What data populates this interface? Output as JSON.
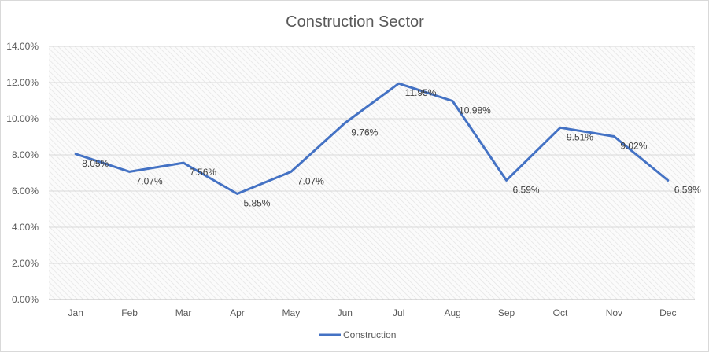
{
  "chart_data": {
    "type": "line",
    "title": "Construction Sector",
    "categories": [
      "Jan",
      "Feb",
      "Mar",
      "Apr",
      "May",
      "Jun",
      "Jul",
      "Aug",
      "Sep",
      "Oct",
      "Nov",
      "Dec"
    ],
    "series": [
      {
        "name": "Construction",
        "values": [
          8.05,
          7.07,
          7.56,
          5.85,
          7.07,
          9.76,
          11.95,
          10.98,
          6.59,
          9.51,
          9.02,
          6.59
        ],
        "data_labels": [
          "8.05%",
          "7.07%",
          "7.56%",
          "5.85%",
          "7.07%",
          "9.76%",
          "11.95%",
          "10.98%",
          "6.59%",
          "9.51%",
          "9.02%",
          "6.59%"
        ],
        "color": "#4472c4"
      }
    ],
    "y_ticks": [
      "0.00%",
      "2.00%",
      "4.00%",
      "6.00%",
      "8.00%",
      "10.00%",
      "12.00%",
      "14.00%"
    ],
    "ylim": [
      0,
      14
    ],
    "xlabel": "",
    "ylabel": "",
    "grid": true,
    "legend_position": "bottom",
    "plot_background": "hatched light gray"
  }
}
